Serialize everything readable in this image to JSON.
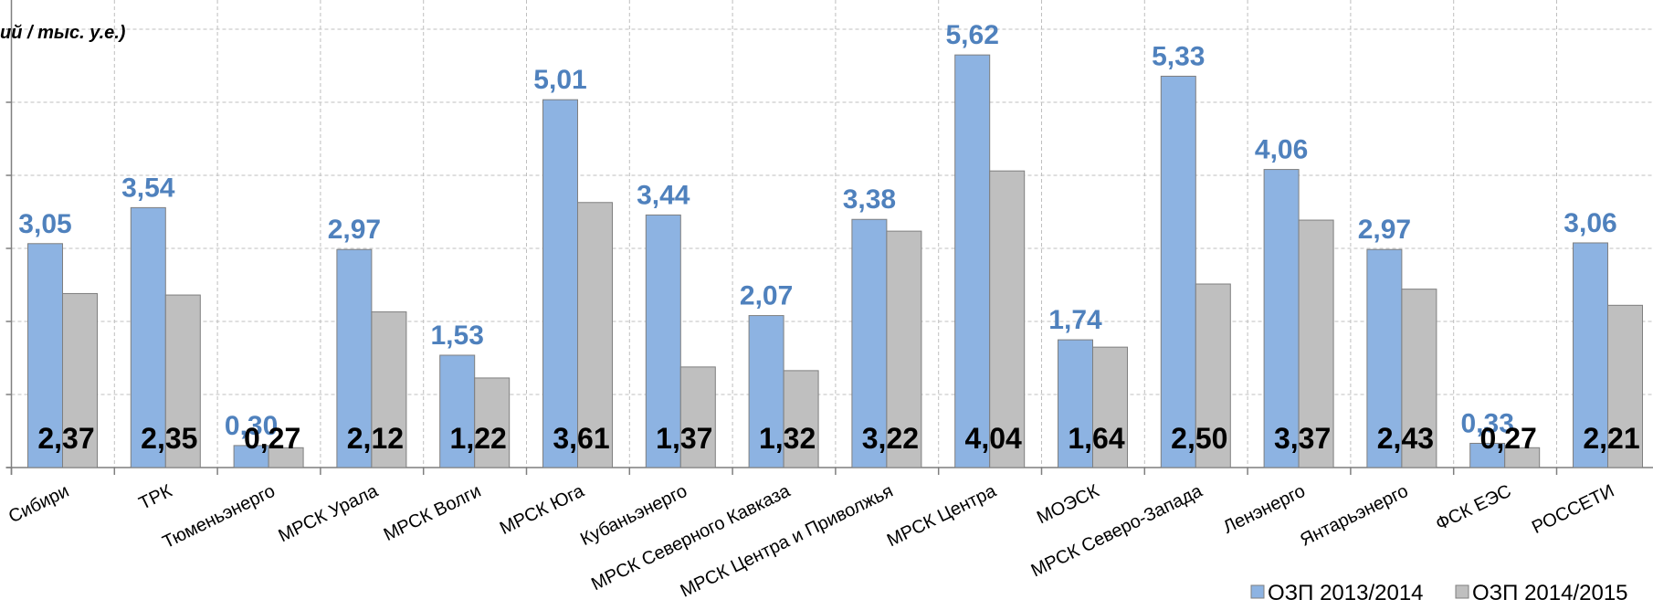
{
  "chart_data": {
    "type": "bar",
    "ylabel": "ий / тыс. у.е.)",
    "ylim": [
      0,
      6.3
    ],
    "grid": true,
    "legend_position": "bottom-right",
    "colors": {
      "series1": "#8db3e2",
      "series2": "#bfbfbf",
      "label1": "#4f81bd",
      "label2": "#000000",
      "grid": "#bfbfbf"
    },
    "categories": [
      "Сибири",
      "ТРК",
      "Тюменьэнерго",
      "МРСК Урала",
      "МРСК Волги",
      "МРСК Юга",
      "Кубаньэнерго",
      "МРСК Северного Кавказа",
      "МРСК Центра и Приволжья",
      "МРСК Центра",
      "МОЭСК",
      "МРСК Северо-Запада",
      "Ленэнерго",
      "Янтарьэнерго",
      "ФСК ЕЭС",
      "РОССЕТИ"
    ],
    "series": [
      {
        "name": "ОЗП 2013/2014",
        "values": [
          3.05,
          3.54,
          0.3,
          2.97,
          1.53,
          5.01,
          3.44,
          2.07,
          3.38,
          5.62,
          1.74,
          5.33,
          4.06,
          2.97,
          0.33,
          3.06
        ],
        "labels": [
          "3,05",
          "3,54",
          "0,30",
          "2,97",
          "1,53",
          "5,01",
          "3,44",
          "2,07",
          "3,38",
          "5,62",
          "1,74",
          "5,33",
          "4,06",
          "2,97",
          "0,33",
          "3,06"
        ]
      },
      {
        "name": "ОЗП 2014/2015",
        "values": [
          2.37,
          2.35,
          0.27,
          2.12,
          1.22,
          3.61,
          1.37,
          1.32,
          3.22,
          4.04,
          1.64,
          2.5,
          3.37,
          2.43,
          0.27,
          2.21
        ],
        "labels": [
          "2,37",
          "2,35",
          "0,27",
          "2,12",
          "1,22",
          "3,61",
          "1,37",
          "1,32",
          "3,22",
          "4,04",
          "1,64",
          "2,50",
          "3,37",
          "2,43",
          "0,27",
          "2,21"
        ]
      }
    ]
  }
}
